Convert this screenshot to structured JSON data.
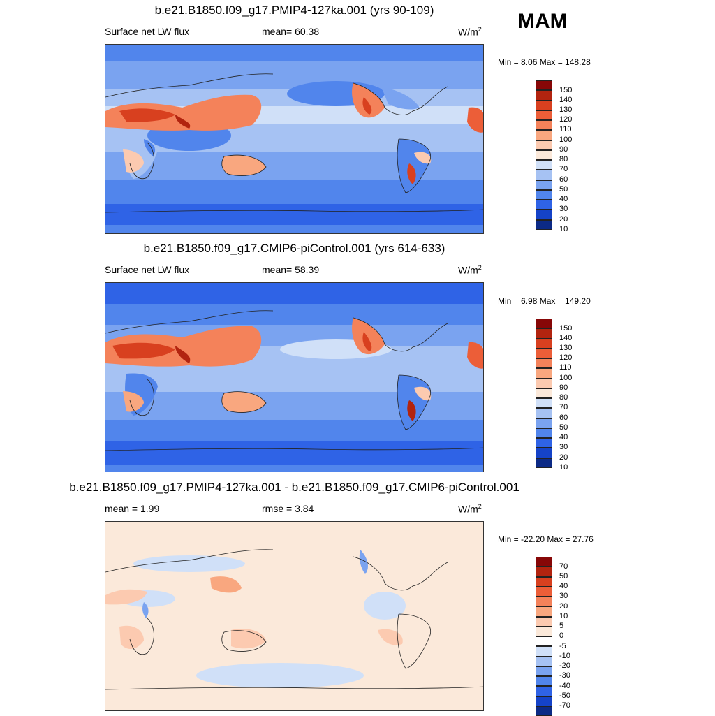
{
  "season": "MAM",
  "panels": [
    {
      "title": "b.e21.B1850.f09_g17.PMIP4-127ka.001 (yrs 90-109)",
      "left_label": "Surface net LW flux",
      "center_label": "mean=  60.38",
      "units_base": "W/m",
      "units_exp": "2",
      "minmax": "Min =   8.06 Max = 148.28",
      "colors": [
        "#0c2a86",
        "#1543c8",
        "#2f63e6",
        "#5185ec",
        "#7aa3f0",
        "#a6c2f3",
        "#d0e0f8",
        "#fbe9da",
        "#fccab0",
        "#f9a77f",
        "#f4825a",
        "#ec5e38",
        "#d8401f",
        "#b2240f",
        "#870707"
      ],
      "labels": [
        "10",
        "20",
        "30",
        "40",
        "50",
        "60",
        "70",
        "80",
        "90",
        "100",
        "110",
        "120",
        "130",
        "140",
        "150"
      ]
    },
    {
      "title": "b.e21.B1850.f09_g17.CMIP6-piControl.001 (yrs 614-633)",
      "left_label": "Surface net LW flux",
      "center_label": "mean=  58.39",
      "units_base": "W/m",
      "units_exp": "2",
      "minmax": "Min =   6.98 Max = 149.20",
      "colors": [
        "#0c2a86",
        "#1543c8",
        "#2f63e6",
        "#5185ec",
        "#7aa3f0",
        "#a6c2f3",
        "#d0e0f8",
        "#fbe9da",
        "#fccab0",
        "#f9a77f",
        "#f4825a",
        "#ec5e38",
        "#d8401f",
        "#b2240f",
        "#870707"
      ],
      "labels": [
        "10",
        "20",
        "30",
        "40",
        "50",
        "60",
        "70",
        "80",
        "90",
        "100",
        "110",
        "120",
        "130",
        "140",
        "150"
      ]
    },
    {
      "title": "b.e21.B1850.f09_g17.PMIP4-127ka.001 - b.e21.B1850.f09_g17.CMIP6-piControl.001",
      "left_label": "mean =   1.99",
      "center_label": "rmse =   3.84",
      "units_base": "W/m",
      "units_exp": "2",
      "minmax": "Min = -22.20 Max =  27.76",
      "colors": [
        "#0c2a86",
        "#1543c8",
        "#2f63e6",
        "#5185ec",
        "#7aa3f0",
        "#a6c2f3",
        "#d0e0f8",
        "#ffffff",
        "#fbe9da",
        "#fccab0",
        "#f9a77f",
        "#f4825a",
        "#ec5e38",
        "#d8401f",
        "#b2240f",
        "#870707"
      ],
      "labels": [
        "-70",
        "-50",
        "-40",
        "-30",
        "-20",
        "-10",
        "-5",
        "0",
        "5",
        "10",
        "20",
        "30",
        "40",
        "50",
        "70"
      ]
    }
  ]
}
